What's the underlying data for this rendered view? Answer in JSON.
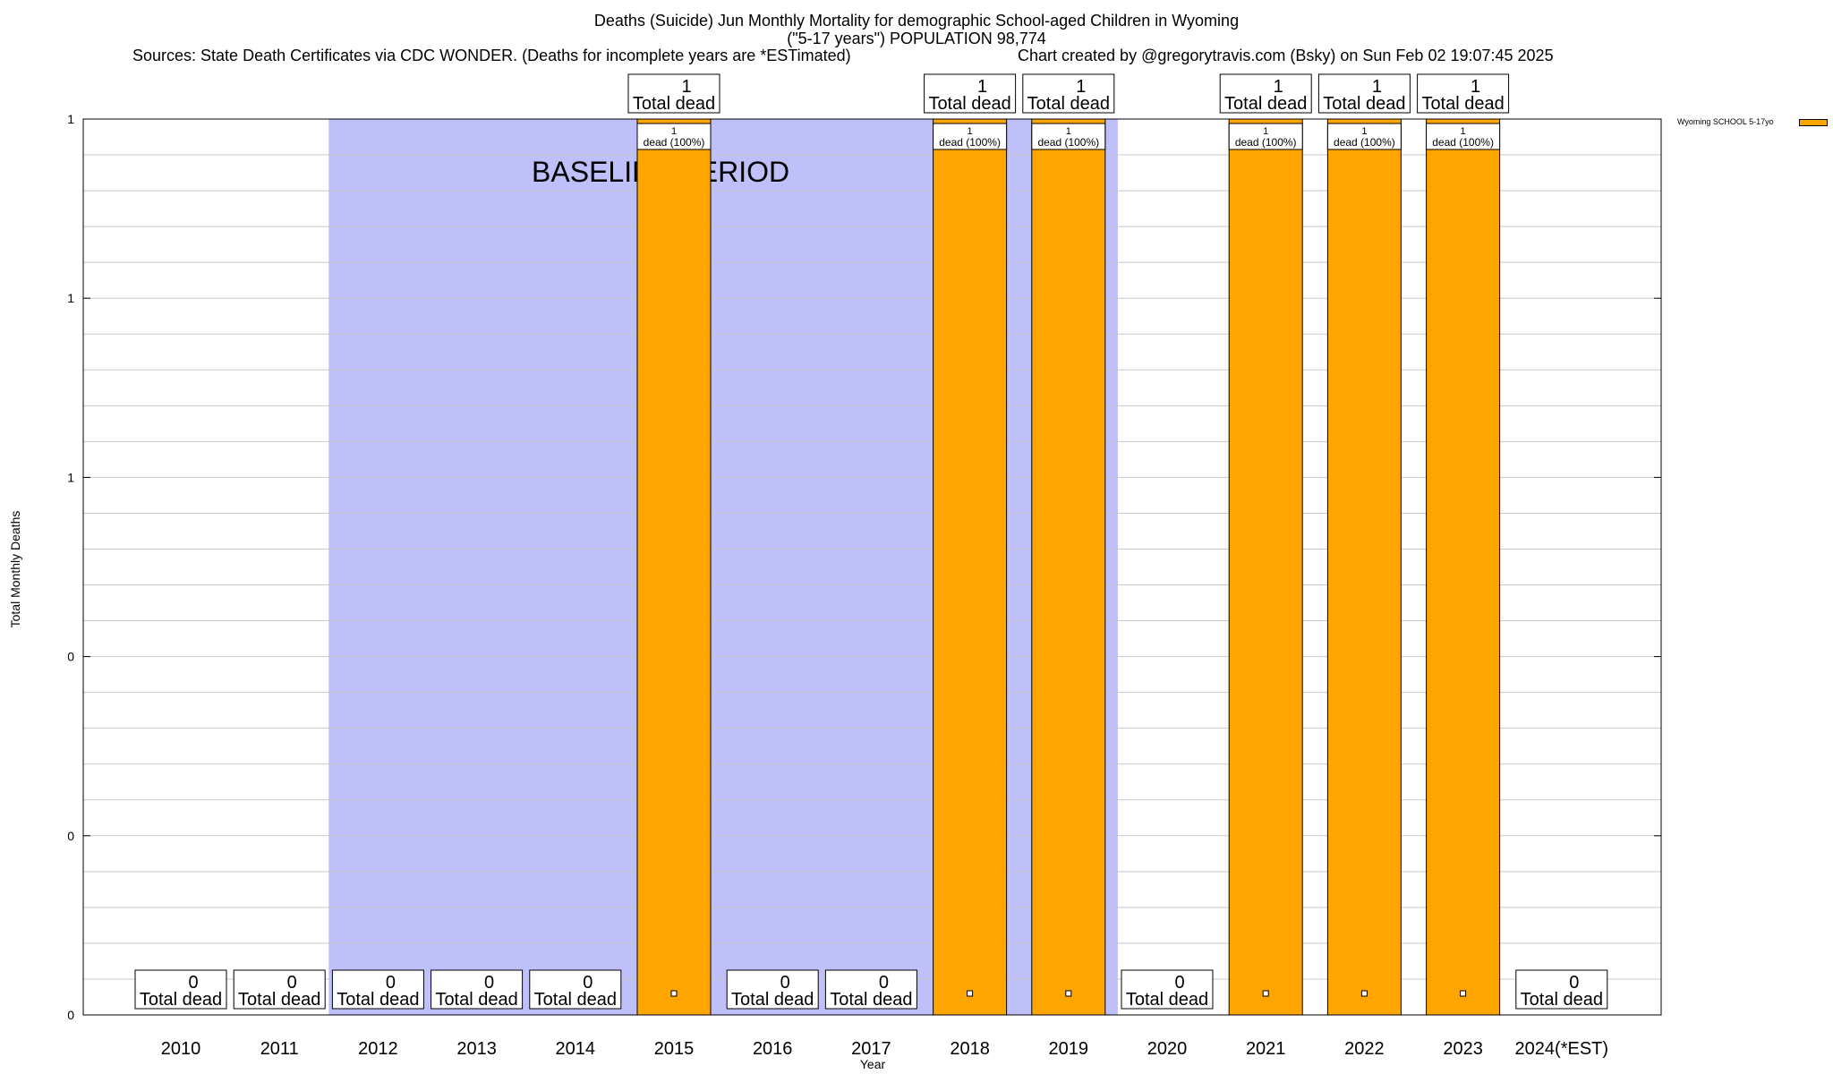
{
  "header": {
    "title_line1": "Deaths (Suicide) Jun Monthly Mortality for demographic School-aged Children in Wyoming",
    "title_line2": "(\"5-17 years\") POPULATION 98,774",
    "sources": "Sources: State Death Certificates via CDC WONDER. (Deaths for incomplete years are *ESTimated)",
    "credit": "Chart created by @gregorytravis.com (Bsky) on Sun Feb 02 19:07:45 2025"
  },
  "chart_data": {
    "type": "bar",
    "categories": [
      "2010",
      "2011",
      "2012",
      "2013",
      "2014",
      "2015",
      "2016",
      "2017",
      "2018",
      "2019",
      "2020",
      "2021",
      "2022",
      "2023",
      "2024(*EST)"
    ],
    "series": [
      {
        "name": "Wyoming SCHOOL 5-17yo",
        "color": "#ffa500",
        "values": [
          0,
          0,
          0,
          0,
          0,
          1,
          0,
          0,
          1,
          1,
          0,
          1,
          1,
          1,
          0
        ]
      }
    ],
    "xlabel": "Year",
    "ylabel": "Total Monthly Deaths",
    "ylim": [
      0,
      1
    ],
    "ytick_labels": [
      "0",
      "0",
      "0",
      "1",
      "1",
      "1"
    ],
    "grid": true,
    "legend_position": "top-right",
    "baseline_period": {
      "label": "BASELINE PERIOD",
      "start_category": "2012",
      "end_category": "2019",
      "color": "#bfbffa"
    },
    "total_labels": [
      "0\nTotal dead",
      "0\nTotal dead",
      "0\nTotal dead",
      "0\nTotal dead",
      "0\nTotal dead",
      "1\nTotal dead",
      "0\nTotal dead",
      "0\nTotal dead",
      "1\nTotal dead",
      "1\nTotal dead",
      "0\nTotal dead",
      "1\nTotal dead",
      "1\nTotal dead",
      "1\nTotal dead",
      "0\nTotal dead"
    ],
    "bar_labels": [
      "",
      "",
      "",
      "",
      "",
      "1\ndead (100%)",
      "",
      "",
      "1\ndead (100%)",
      "1\ndead (100%)",
      "",
      "1\ndead (100%)",
      "1\ndead (100%)",
      "1\ndead (100%)",
      ""
    ]
  }
}
